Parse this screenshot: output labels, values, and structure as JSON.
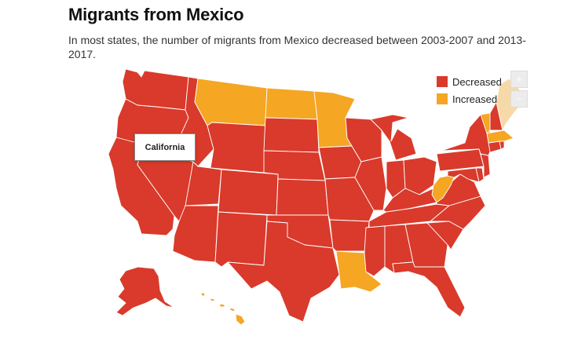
{
  "title": "Migrants from Mexico",
  "subtitle": "In most states, the number of migrants from Mexico decreased between 2003-2007 and 2013-2017.",
  "tooltip": {
    "state": "California"
  },
  "legend": [
    {
      "label": "Decreased",
      "color": "#d93a2b"
    },
    {
      "label": "Increased",
      "color": "#f5a623"
    }
  ],
  "zoom": {
    "in": "+",
    "out": "−"
  },
  "colors": {
    "decreased": "#d93a2b",
    "increased": "#f5a623",
    "hover": "#f7d9a8",
    "border": "#ffffff"
  },
  "states": {
    "decreased": [
      "Washington",
      "Oregon",
      "California",
      "Nevada",
      "Idaho",
      "Utah",
      "Arizona",
      "Wyoming",
      "Colorado",
      "New Mexico",
      "South Dakota",
      "Nebraska",
      "Kansas",
      "Oklahoma",
      "Texas",
      "Iowa",
      "Missouri",
      "Arkansas",
      "Wisconsin",
      "Illinois",
      "Michigan",
      "Indiana",
      "Ohio",
      "Kentucky",
      "Tennessee",
      "Mississippi",
      "Alabama",
      "Georgia",
      "Florida",
      "South Carolina",
      "North Carolina",
      "Virginia",
      "Pennsylvania",
      "New York",
      "New Jersey",
      "Maryland",
      "Delaware",
      "Connecticut",
      "Rhode Island",
      "New Hampshire",
      "Alaska"
    ],
    "increased": [
      "Montana",
      "North Dakota",
      "Minnesota",
      "Louisiana",
      "West Virginia",
      "Vermont",
      "Massachusetts",
      "Hawaii",
      "Maine"
    ]
  }
}
